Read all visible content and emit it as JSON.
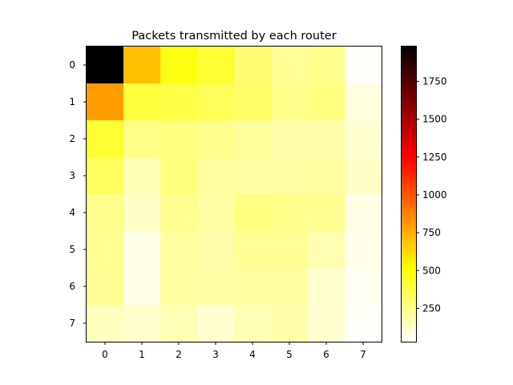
{
  "chart_data": {
    "type": "heatmap",
    "title": "Packets transmitted by each router",
    "xlabel": "",
    "ylabel": "",
    "x_ticks": [
      "0",
      "1",
      "2",
      "3",
      "4",
      "5",
      "6",
      "7"
    ],
    "y_ticks": [
      "0",
      "1",
      "2",
      "3",
      "4",
      "5",
      "6",
      "7"
    ],
    "colormap": "hot_r",
    "vmin": 30,
    "vmax": 1980,
    "colorbar_ticks": [
      250,
      500,
      750,
      1000,
      1250,
      1500,
      1750
    ],
    "colorbar_tick_labels": [
      "250",
      "500",
      "750",
      "1000",
      "1250",
      "1500",
      "1750"
    ],
    "values": [
      [
        1980,
        700,
        480,
        420,
        300,
        230,
        250,
        40
      ],
      [
        800,
        400,
        380,
        350,
        320,
        250,
        270,
        90
      ],
      [
        420,
        260,
        270,
        250,
        220,
        190,
        190,
        120
      ],
      [
        340,
        170,
        280,
        210,
        200,
        200,
        210,
        140
      ],
      [
        250,
        140,
        240,
        200,
        270,
        250,
        240,
        80
      ],
      [
        240,
        80,
        210,
        190,
        230,
        230,
        180,
        70
      ],
      [
        230,
        80,
        210,
        200,
        210,
        210,
        120,
        60
      ],
      [
        150,
        130,
        170,
        120,
        170,
        190,
        120,
        40
      ]
    ]
  }
}
